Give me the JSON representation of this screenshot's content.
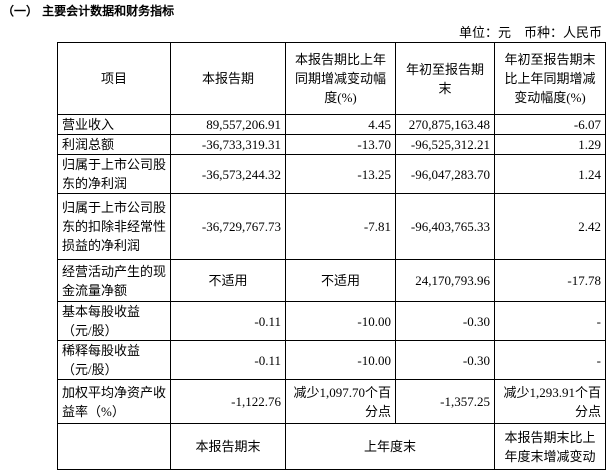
{
  "header": {
    "title": "（一） 主要会计数据和财务指标",
    "unit": "单位：元　币种：人民币"
  },
  "table": {
    "columns": [
      "项目",
      "本报告期",
      "本报告期比上年同期增减变动幅度(%)",
      "年初至报告期末",
      "年初至报告期末比上年同期增减变动幅度(%)"
    ],
    "rows": [
      [
        "营业收入",
        "89,557,206.91",
        "4.45",
        "270,875,163.48",
        "-6.07"
      ],
      [
        "利润总额",
        "-36,733,319.31",
        "-13.70",
        "-96,525,312.21",
        "1.29"
      ],
      [
        "归属于上市公司股东的净利润",
        "-36,573,244.32",
        "-13.25",
        "-96,047,283.70",
        "1.24"
      ],
      [
        "归属于上市公司股东的扣除非经常性损益的净利润",
        "-36,729,767.73",
        "-7.81",
        "-96,403,765.33",
        "2.42"
      ],
      [
        "经营活动产生的现金流量净额",
        "不适用",
        "不适用",
        "24,170,793.96",
        "-17.78"
      ],
      [
        "基本每股收益（元/股）",
        "-0.11",
        "-10.00",
        "-0.30",
        "-"
      ],
      [
        "稀释每股收益（元/股）",
        "-0.11",
        "-10.00",
        "-0.30",
        "-"
      ],
      [
        "加权平均净资产收益率（%）",
        "-1,122.76",
        "减少1,097.70个百分点",
        "-1,357.25",
        "减少1,293.91个百分点"
      ]
    ],
    "footer_row": [
      "本报告期末",
      "上年度末",
      "本报告期末比上年度末增减变动"
    ]
  }
}
